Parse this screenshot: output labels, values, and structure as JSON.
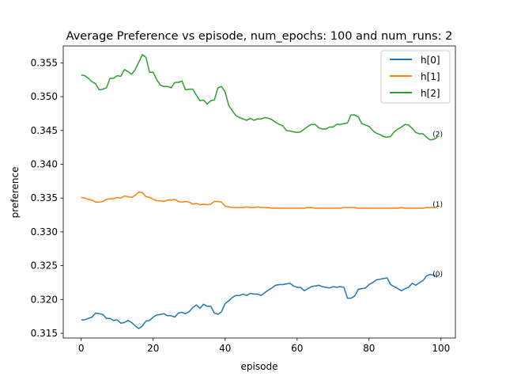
{
  "chart_data": {
    "type": "line",
    "title": "Average Preference vs episode, num_epochs: 100 and num_runs: 2",
    "xlabel": "episode",
    "ylabel": "preference",
    "xlim": [
      -5,
      104
    ],
    "ylim": [
      0.3143,
      0.3575
    ],
    "xticks": [
      0,
      20,
      40,
      60,
      80,
      100
    ],
    "yticks": [
      0.315,
      0.32,
      0.325,
      0.33,
      0.335,
      0.34,
      0.345,
      0.35,
      0.355
    ],
    "grid": false,
    "legend_position": "top-right",
    "series": [
      {
        "name": "h[0]",
        "color": "#1f77b4",
        "end_label": "(0)",
        "points": [
          [
            0,
            0.317
          ],
          [
            1,
            0.317
          ],
          [
            2,
            0.3172
          ],
          [
            3,
            0.3174
          ],
          [
            4,
            0.318
          ],
          [
            5,
            0.3179
          ],
          [
            6,
            0.3178
          ],
          [
            7,
            0.3172
          ],
          [
            8,
            0.3172
          ],
          [
            9,
            0.3169
          ],
          [
            10,
            0.317
          ],
          [
            11,
            0.3165
          ],
          [
            12,
            0.3166
          ],
          [
            13,
            0.3169
          ],
          [
            14,
            0.3166
          ],
          [
            15,
            0.3161
          ],
          [
            16,
            0.3157
          ],
          [
            17,
            0.3161
          ],
          [
            18,
            0.3168
          ],
          [
            19,
            0.3169
          ],
          [
            20,
            0.3174
          ],
          [
            21,
            0.3177
          ],
          [
            22,
            0.3178
          ],
          [
            23,
            0.3179
          ],
          [
            24,
            0.3176
          ],
          [
            25,
            0.3176
          ],
          [
            26,
            0.3174
          ],
          [
            27,
            0.318
          ],
          [
            28,
            0.3181
          ],
          [
            29,
            0.3179
          ],
          [
            30,
            0.3182
          ],
          [
            31,
            0.3188
          ],
          [
            32,
            0.3192
          ],
          [
            33,
            0.3187
          ],
          [
            34,
            0.3193
          ],
          [
            35,
            0.319
          ],
          [
            36,
            0.319
          ],
          [
            37,
            0.318
          ],
          [
            38,
            0.3178
          ],
          [
            39,
            0.3182
          ],
          [
            40,
            0.3194
          ],
          [
            41,
            0.3198
          ],
          [
            42,
            0.3203
          ],
          [
            43,
            0.3206
          ],
          [
            44,
            0.3206
          ],
          [
            45,
            0.3208
          ],
          [
            46,
            0.3206
          ],
          [
            47,
            0.3209
          ],
          [
            48,
            0.3208
          ],
          [
            49,
            0.3208
          ],
          [
            50,
            0.3206
          ],
          [
            51,
            0.321
          ],
          [
            52,
            0.3214
          ],
          [
            53,
            0.3217
          ],
          [
            54,
            0.3221
          ],
          [
            55,
            0.3222
          ],
          [
            56,
            0.3222
          ],
          [
            57,
            0.3223
          ],
          [
            58,
            0.3224
          ],
          [
            59,
            0.322
          ],
          [
            60,
            0.3218
          ],
          [
            61,
            0.3218
          ],
          [
            62,
            0.3213
          ],
          [
            63,
            0.3216
          ],
          [
            64,
            0.3219
          ],
          [
            65,
            0.322
          ],
          [
            66,
            0.3221
          ],
          [
            67,
            0.3219
          ],
          [
            68,
            0.3218
          ],
          [
            69,
            0.3217
          ],
          [
            70,
            0.3219
          ],
          [
            71,
            0.3218
          ],
          [
            72,
            0.3219
          ],
          [
            73,
            0.3218
          ],
          [
            74,
            0.3202
          ],
          [
            75,
            0.3202
          ],
          [
            76,
            0.3205
          ],
          [
            77,
            0.3215
          ],
          [
            78,
            0.3216
          ],
          [
            79,
            0.3217
          ],
          [
            80,
            0.3222
          ],
          [
            81,
            0.3225
          ],
          [
            82,
            0.3229
          ],
          [
            83,
            0.323
          ],
          [
            84,
            0.3231
          ],
          [
            85,
            0.3232
          ],
          [
            86,
            0.3222
          ],
          [
            87,
            0.3219
          ],
          [
            88,
            0.3216
          ],
          [
            89,
            0.3213
          ],
          [
            90,
            0.3216
          ],
          [
            91,
            0.3218
          ],
          [
            92,
            0.3224
          ],
          [
            93,
            0.3221
          ],
          [
            94,
            0.3225
          ],
          [
            95,
            0.3228
          ],
          [
            96,
            0.3235
          ],
          [
            97,
            0.3237
          ],
          [
            98,
            0.3236
          ],
          [
            99,
            0.3233
          ]
        ]
      },
      {
        "name": "h[1]",
        "color": "#ff7f0e",
        "end_label": "(1)",
        "points": [
          [
            0,
            0.3351
          ],
          [
            1,
            0.335
          ],
          [
            2,
            0.3348
          ],
          [
            3,
            0.3347
          ],
          [
            4,
            0.3344
          ],
          [
            5,
            0.3344
          ],
          [
            6,
            0.3345
          ],
          [
            7,
            0.3348
          ],
          [
            8,
            0.3349
          ],
          [
            9,
            0.3349
          ],
          [
            10,
            0.3351
          ],
          [
            11,
            0.335
          ],
          [
            12,
            0.3353
          ],
          [
            13,
            0.3352
          ],
          [
            14,
            0.3351
          ],
          [
            15,
            0.3354
          ],
          [
            16,
            0.3359
          ],
          [
            17,
            0.3358
          ],
          [
            18,
            0.3352
          ],
          [
            19,
            0.3351
          ],
          [
            20,
            0.3348
          ],
          [
            21,
            0.3346
          ],
          [
            22,
            0.3346
          ],
          [
            23,
            0.3345
          ],
          [
            24,
            0.3347
          ],
          [
            25,
            0.3347
          ],
          [
            26,
            0.3348
          ],
          [
            27,
            0.3345
          ],
          [
            28,
            0.3344
          ],
          [
            29,
            0.3345
          ],
          [
            30,
            0.3344
          ],
          [
            31,
            0.3341
          ],
          [
            32,
            0.3342
          ],
          [
            33,
            0.334
          ],
          [
            34,
            0.3341
          ],
          [
            35,
            0.334
          ],
          [
            36,
            0.3341
          ],
          [
            37,
            0.3345
          ],
          [
            38,
            0.3345
          ],
          [
            39,
            0.3344
          ],
          [
            40,
            0.3338
          ],
          [
            41,
            0.3337
          ],
          [
            42,
            0.3336
          ],
          [
            43,
            0.3336
          ],
          [
            44,
            0.3336
          ],
          [
            45,
            0.3336
          ],
          [
            46,
            0.3337
          ],
          [
            47,
            0.3336
          ],
          [
            48,
            0.3336
          ],
          [
            49,
            0.3337
          ],
          [
            50,
            0.3336
          ],
          [
            51,
            0.3336
          ],
          [
            52,
            0.3336
          ],
          [
            53,
            0.3335
          ],
          [
            54,
            0.3335
          ],
          [
            55,
            0.3335
          ],
          [
            56,
            0.3335
          ],
          [
            57,
            0.3335
          ],
          [
            58,
            0.3335
          ],
          [
            59,
            0.3335
          ],
          [
            60,
            0.3335
          ],
          [
            61,
            0.3335
          ],
          [
            62,
            0.3335
          ],
          [
            63,
            0.3336
          ],
          [
            64,
            0.3336
          ],
          [
            65,
            0.3335
          ],
          [
            66,
            0.3335
          ],
          [
            67,
            0.3335
          ],
          [
            68,
            0.3335
          ],
          [
            69,
            0.3335
          ],
          [
            70,
            0.3335
          ],
          [
            71,
            0.3335
          ],
          [
            72,
            0.3335
          ],
          [
            73,
            0.3336
          ],
          [
            74,
            0.3336
          ],
          [
            75,
            0.3336
          ],
          [
            76,
            0.3336
          ],
          [
            77,
            0.3335
          ],
          [
            78,
            0.3335
          ],
          [
            79,
            0.3335
          ],
          [
            80,
            0.3335
          ],
          [
            81,
            0.3335
          ],
          [
            82,
            0.3335
          ],
          [
            83,
            0.3335
          ],
          [
            84,
            0.3335
          ],
          [
            85,
            0.3335
          ],
          [
            86,
            0.3335
          ],
          [
            87,
            0.3335
          ],
          [
            88,
            0.3335
          ],
          [
            89,
            0.3336
          ],
          [
            90,
            0.3335
          ],
          [
            91,
            0.3335
          ],
          [
            92,
            0.3335
          ],
          [
            93,
            0.3335
          ],
          [
            94,
            0.3335
          ],
          [
            95,
            0.3335
          ],
          [
            96,
            0.3336
          ],
          [
            97,
            0.3336
          ],
          [
            98,
            0.3336
          ],
          [
            99,
            0.3336
          ]
        ]
      },
      {
        "name": "h[2]",
        "color": "#2ca02c",
        "end_label": "(2)",
        "points": [
          [
            0,
            0.3532
          ],
          [
            1,
            0.3531
          ],
          [
            2,
            0.3527
          ],
          [
            3,
            0.3522
          ],
          [
            4,
            0.3519
          ],
          [
            5,
            0.351
          ],
          [
            6,
            0.3511
          ],
          [
            7,
            0.3513
          ],
          [
            8,
            0.3527
          ],
          [
            9,
            0.3527
          ],
          [
            10,
            0.3531
          ],
          [
            11,
            0.353
          ],
          [
            12,
            0.354
          ],
          [
            13,
            0.3537
          ],
          [
            14,
            0.3533
          ],
          [
            15,
            0.354
          ],
          [
            16,
            0.3551
          ],
          [
            17,
            0.3562
          ],
          [
            18,
            0.3558
          ],
          [
            19,
            0.3536
          ],
          [
            20,
            0.3536
          ],
          [
            21,
            0.3525
          ],
          [
            22,
            0.3517
          ],
          [
            23,
            0.3515
          ],
          [
            24,
            0.3515
          ],
          [
            25,
            0.3513
          ],
          [
            26,
            0.3521
          ],
          [
            27,
            0.3521
          ],
          [
            28,
            0.3523
          ],
          [
            29,
            0.351
          ],
          [
            30,
            0.3511
          ],
          [
            31,
            0.3511
          ],
          [
            32,
            0.3502
          ],
          [
            33,
            0.3494
          ],
          [
            34,
            0.3495
          ],
          [
            35,
            0.3489
          ],
          [
            36,
            0.3494
          ],
          [
            37,
            0.3495
          ],
          [
            38,
            0.3513
          ],
          [
            39,
            0.3515
          ],
          [
            40,
            0.3507
          ],
          [
            41,
            0.3487
          ],
          [
            42,
            0.3479
          ],
          [
            43,
            0.3472
          ],
          [
            44,
            0.3469
          ],
          [
            45,
            0.3467
          ],
          [
            46,
            0.3465
          ],
          [
            47,
            0.3468
          ],
          [
            48,
            0.3465
          ],
          [
            49,
            0.3467
          ],
          [
            50,
            0.3467
          ],
          [
            51,
            0.3469
          ],
          [
            52,
            0.3468
          ],
          [
            53,
            0.3466
          ],
          [
            54,
            0.3462
          ],
          [
            55,
            0.3459
          ],
          [
            56,
            0.3457
          ],
          [
            57,
            0.345
          ],
          [
            58,
            0.3449
          ],
          [
            59,
            0.3448
          ],
          [
            60,
            0.3447
          ],
          [
            61,
            0.3448
          ],
          [
            62,
            0.3452
          ],
          [
            63,
            0.3456
          ],
          [
            64,
            0.3459
          ],
          [
            65,
            0.3459
          ],
          [
            66,
            0.3454
          ],
          [
            67,
            0.3452
          ],
          [
            68,
            0.3452
          ],
          [
            69,
            0.3455
          ],
          [
            70,
            0.3455
          ],
          [
            71,
            0.3459
          ],
          [
            72,
            0.3459
          ],
          [
            73,
            0.346
          ],
          [
            74,
            0.3461
          ],
          [
            75,
            0.3473
          ],
          [
            76,
            0.3473
          ],
          [
            77,
            0.347
          ],
          [
            78,
            0.346
          ],
          [
            79,
            0.3458
          ],
          [
            80,
            0.3456
          ],
          [
            81,
            0.345
          ],
          [
            82,
            0.3446
          ],
          [
            83,
            0.3444
          ],
          [
            84,
            0.3441
          ],
          [
            85,
            0.344
          ],
          [
            86,
            0.3441
          ],
          [
            87,
            0.3448
          ],
          [
            88,
            0.3452
          ],
          [
            89,
            0.3455
          ],
          [
            90,
            0.3459
          ],
          [
            91,
            0.3458
          ],
          [
            92,
            0.3453
          ],
          [
            93,
            0.3447
          ],
          [
            94,
            0.3445
          ],
          [
            95,
            0.3445
          ],
          [
            96,
            0.344
          ],
          [
            97,
            0.3436
          ],
          [
            98,
            0.3437
          ],
          [
            99,
            0.344
          ]
        ]
      }
    ]
  }
}
